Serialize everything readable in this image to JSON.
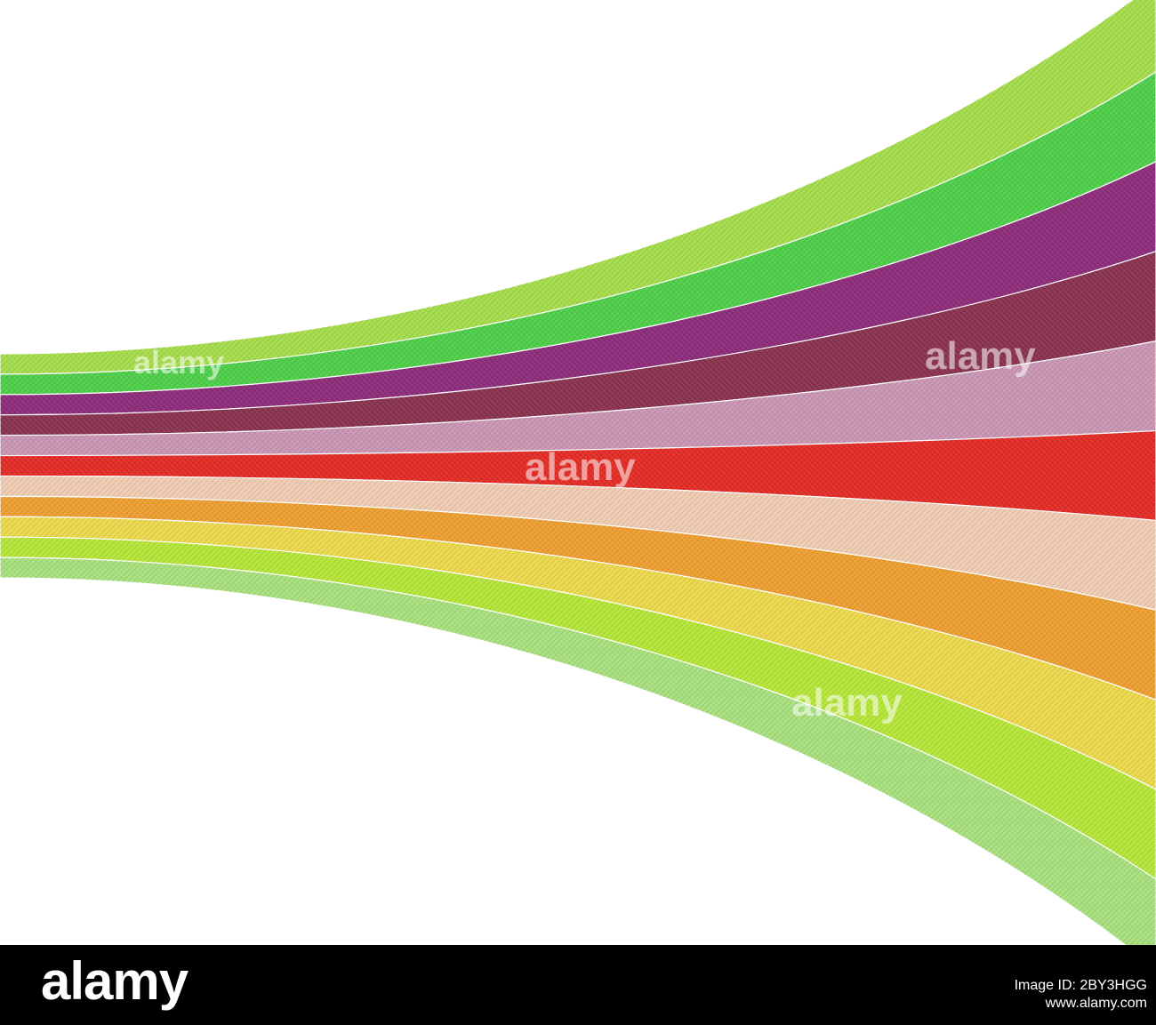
{
  "artwork": {
    "stripe_colors": [
      "#a6dd4c",
      "#4fcf4a",
      "#8e2d7b",
      "#8a3350",
      "#c996b4",
      "#e32d26",
      "#f0ccb3",
      "#ee9f32",
      "#ecd94e",
      "#b6e63a",
      "#a8e07e"
    ],
    "background_color": "#ffffff"
  },
  "watermarks": [
    "alamy",
    "alamy",
    "alamy",
    "alamy"
  ],
  "footer": {
    "logo": "alamy",
    "image_id_label": "Image ID: 2BY3HGG",
    "site": "www.alamy.com",
    "bar_color": "#000000"
  }
}
